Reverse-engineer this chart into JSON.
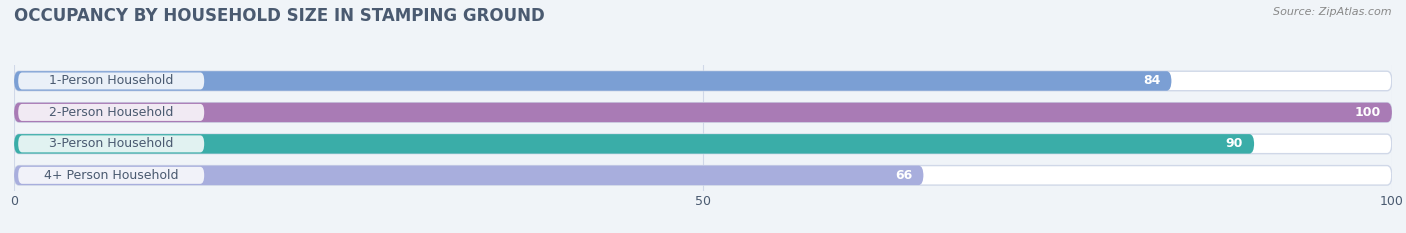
{
  "title": "OCCUPANCY BY HOUSEHOLD SIZE IN STAMPING GROUND",
  "source": "Source: ZipAtlas.com",
  "categories": [
    "1-Person Household",
    "2-Person Household",
    "3-Person Household",
    "4+ Person Household"
  ],
  "values": [
    84,
    100,
    90,
    66
  ],
  "bar_colors": [
    "#7b9fd4",
    "#a97bb5",
    "#3aada8",
    "#a8aedd"
  ],
  "bar_bg_color": "#ffffff",
  "bar_border_color": "#d0d8e8",
  "xlim": [
    0,
    100
  ],
  "xticks": [
    0,
    50,
    100
  ],
  "title_fontsize": 12,
  "label_fontsize": 9,
  "value_fontsize": 9,
  "source_fontsize": 8,
  "background_color": "#f0f4f8",
  "text_color": "#4a5a70",
  "grid_color": "#d0d8e8"
}
